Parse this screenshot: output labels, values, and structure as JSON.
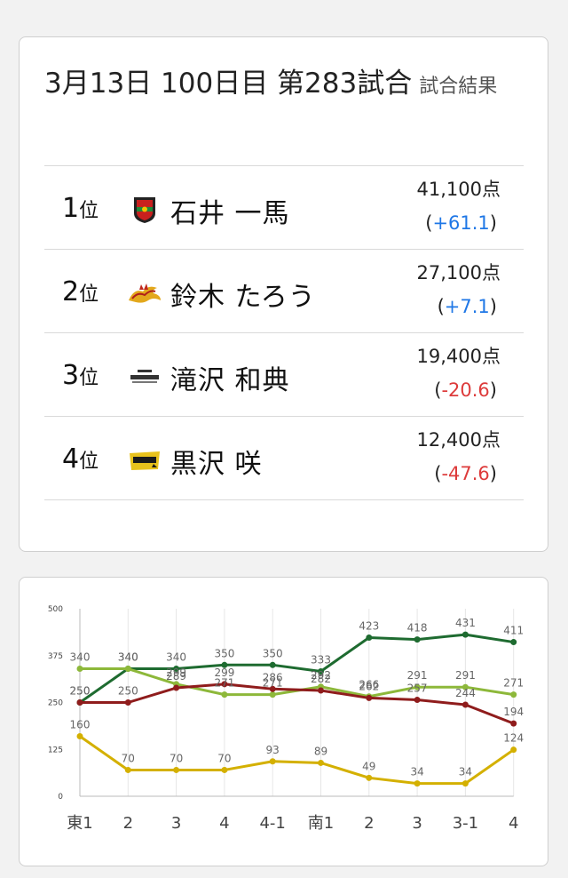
{
  "result": {
    "title": "3月13日 100日目 第283試合",
    "subtitle": "試合結果",
    "rank_suffix": "位",
    "players": [
      {
        "rank": "1",
        "name": "石井 一馬",
        "score": "41,100点",
        "diff": "+61.1",
        "team_icon": "jets-shield-icon"
      },
      {
        "rank": "2",
        "name": "鈴木 たろう",
        "score": "27,100点",
        "diff": "+7.1",
        "team_icon": "dragon-icon"
      },
      {
        "rank": "3",
        "name": "滝沢 和典",
        "score": "19,400点",
        "diff": "-20.6",
        "team_icon": "konami-logo-icon"
      },
      {
        "rank": "4",
        "name": "黒沢 咲",
        "score": "12,400点",
        "diff": "-47.6",
        "team_icon": "raiden-logo-icon"
      }
    ],
    "colors": {
      "positive": "#1f77e6",
      "negative": "#dd3b3b"
    }
  },
  "chart_data": {
    "type": "line",
    "categories": [
      "東1",
      "2",
      "3",
      "4",
      "4-1",
      "南1",
      "2",
      "3",
      "3-1",
      "4"
    ],
    "ylim": [
      0,
      500
    ],
    "yticks": [
      0,
      125,
      250,
      375,
      500
    ],
    "grid": "x",
    "series": [
      {
        "color": "#1e6b30",
        "values": [
          250,
          340,
          340,
          350,
          350,
          333,
          423,
          418,
          431,
          411
        ]
      },
      {
        "color": "#8db83a",
        "values": [
          340,
          340,
          299,
          271,
          271,
          292,
          266,
          291,
          291,
          271
        ]
      },
      {
        "color": "#8f1c1c",
        "values": [
          250,
          250,
          289,
          299,
          286,
          282,
          262,
          257,
          244,
          194
        ]
      },
      {
        "color": "#d4b000",
        "values": [
          160,
          70,
          70,
          70,
          93,
          89,
          49,
          34,
          34,
          124
        ]
      }
    ]
  }
}
